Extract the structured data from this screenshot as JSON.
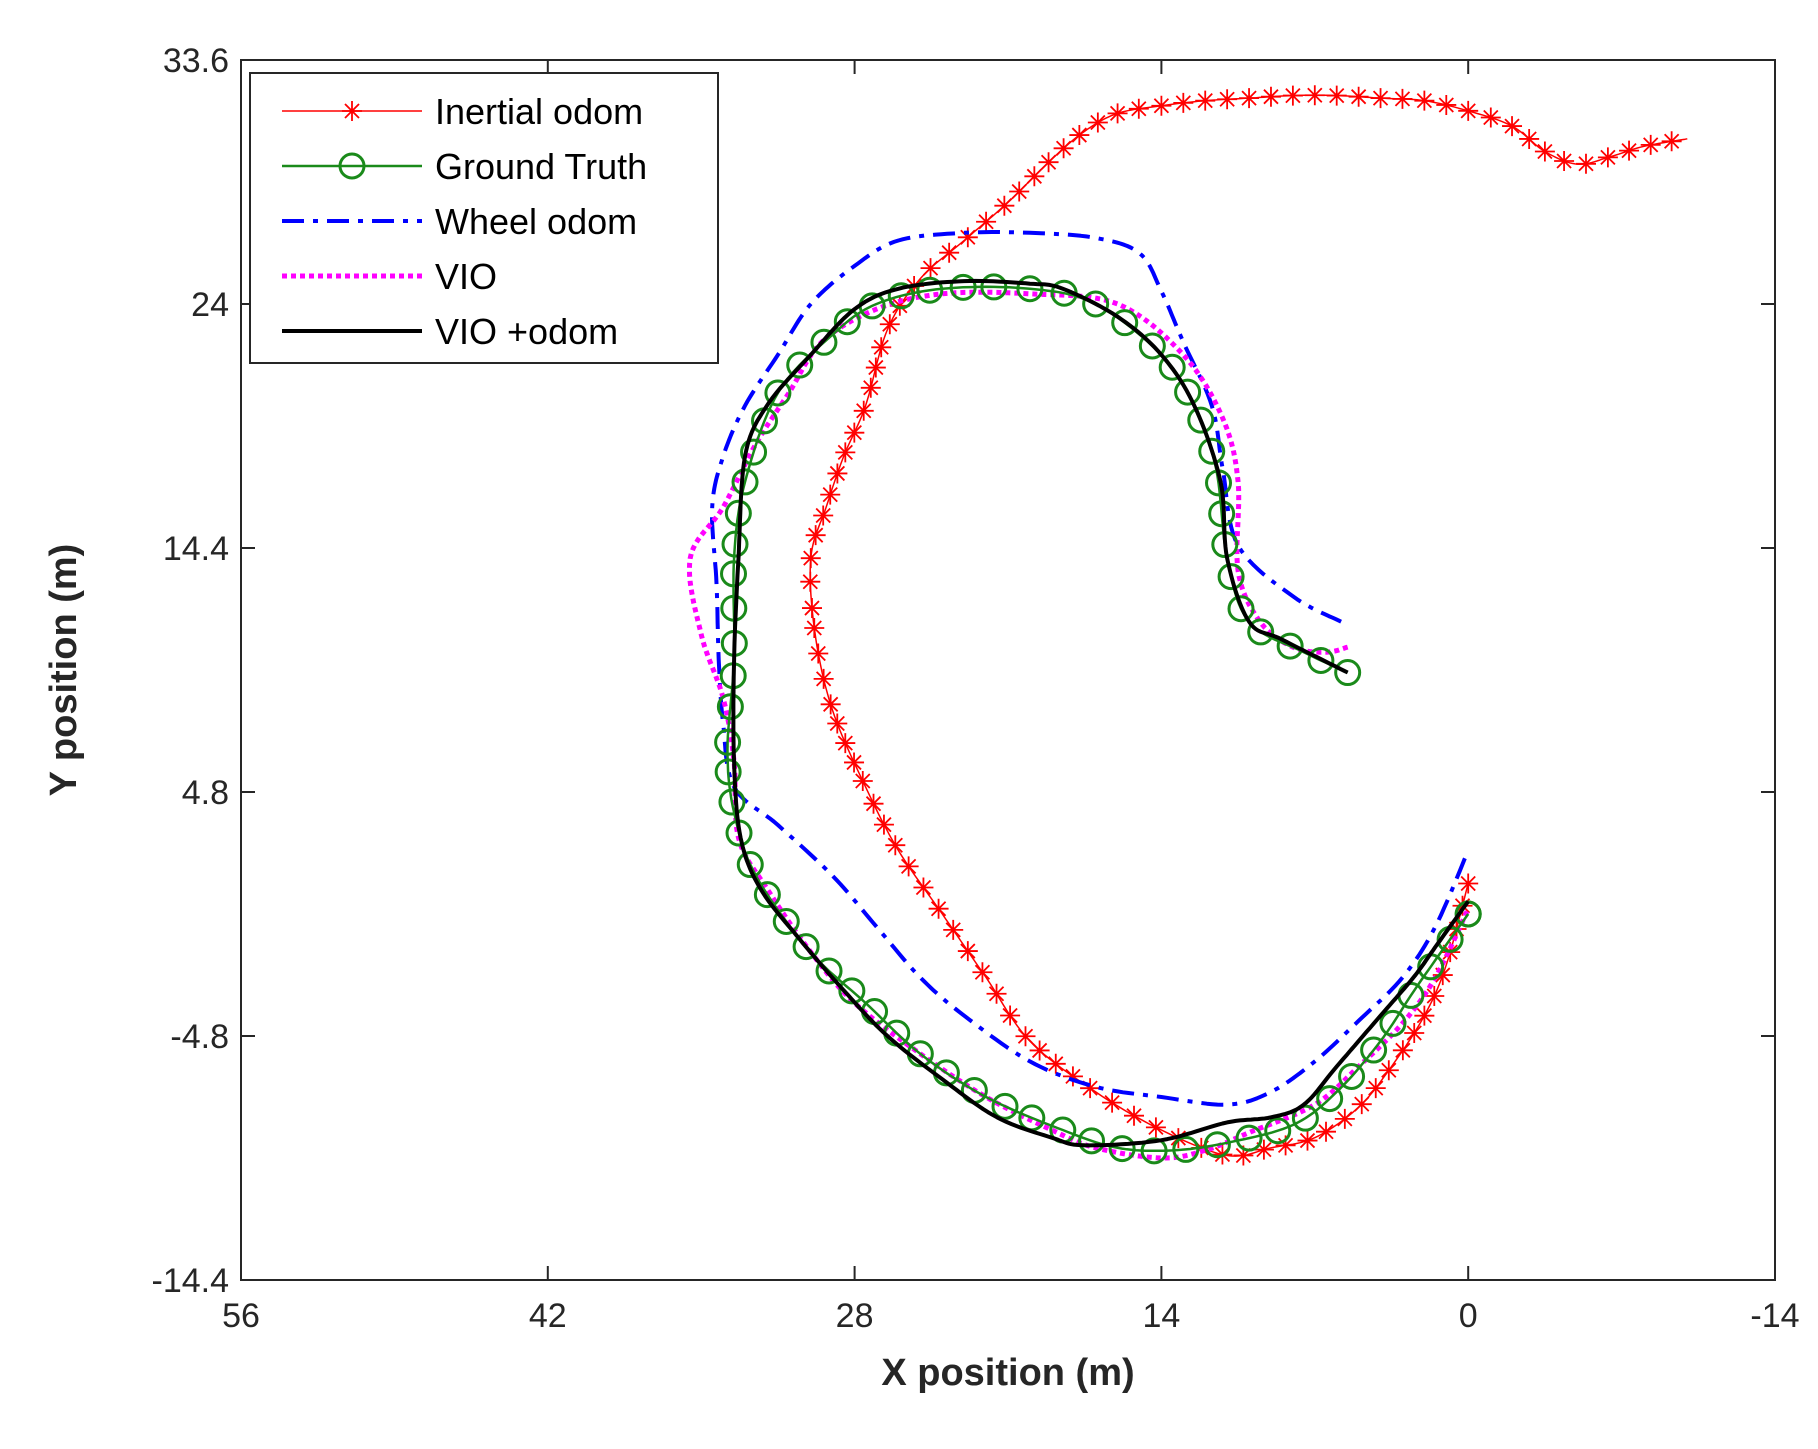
{
  "chart_data": {
    "type": "line",
    "title": "",
    "xlabel": "X position (m)",
    "ylabel": "Y position (m)",
    "xlim": [
      56,
      -14
    ],
    "ylim": [
      -14.4,
      33.6
    ],
    "x_reversed": true,
    "xticks": [
      56,
      42,
      28,
      14,
      0,
      -14
    ],
    "yticks": [
      -14.4,
      -4.8,
      4.8,
      14.4,
      24,
      33.6
    ],
    "xtick_labels": [
      "56",
      "42",
      "28",
      "14",
      "0",
      "-14"
    ],
    "ytick_labels": [
      "-14.4",
      "-4.8",
      "4.8",
      "14.4",
      "24",
      "33.6"
    ],
    "grid": false,
    "legend_position": "top-left",
    "series": [
      {
        "name": "Inertial odom",
        "color": "#ff0000",
        "style": "solid-star",
        "points": [
          [
            0,
            1.2
          ],
          [
            1,
            -2
          ],
          [
            2,
            -4
          ],
          [
            3.5,
            -6
          ],
          [
            5,
            -7.6
          ],
          [
            7,
            -8.8
          ],
          [
            9,
            -9.2
          ],
          [
            11,
            -9.5
          ],
          [
            14,
            -8.5
          ],
          [
            17,
            -7
          ],
          [
            20,
            -5
          ],
          [
            22,
            -2.5
          ],
          [
            24,
            0
          ],
          [
            26,
            2.5
          ],
          [
            27.5,
            5
          ],
          [
            29,
            8
          ],
          [
            29.8,
            11
          ],
          [
            30,
            14
          ],
          [
            29.3,
            16
          ],
          [
            28.5,
            18
          ],
          [
            27.5,
            20
          ],
          [
            26.5,
            23
          ],
          [
            25,
            25
          ],
          [
            23,
            26.5
          ],
          [
            21,
            28
          ],
          [
            19,
            29.7
          ],
          [
            17.5,
            30.8
          ],
          [
            16,
            31.5
          ],
          [
            14,
            31.8
          ],
          [
            12,
            32
          ],
          [
            10,
            32.1
          ],
          [
            8,
            32.2
          ],
          [
            6,
            32.2
          ],
          [
            4,
            32.1
          ],
          [
            2,
            32
          ],
          [
            0,
            31.6
          ],
          [
            -2,
            31
          ],
          [
            -3.5,
            30
          ],
          [
            -5,
            29.5
          ],
          [
            -6.5,
            29.8
          ],
          [
            -8,
            30.2
          ],
          [
            -10,
            30.5
          ]
        ]
      },
      {
        "name": "Ground Truth",
        "color": "#1a8a1a",
        "style": "solid-circle",
        "points": [
          [
            5.5,
            9.5
          ],
          [
            7.5,
            10.3
          ],
          [
            10,
            11.5
          ],
          [
            11,
            14
          ],
          [
            11.5,
            17.5
          ],
          [
            12.5,
            20
          ],
          [
            14,
            22
          ],
          [
            17,
            24
          ],
          [
            20,
            24.6
          ],
          [
            24,
            24.6
          ],
          [
            27,
            24
          ],
          [
            29,
            22.8
          ],
          [
            31.5,
            20.5
          ],
          [
            33,
            17
          ],
          [
            33.5,
            14
          ],
          [
            33.5,
            10
          ],
          [
            33.8,
            6.5
          ],
          [
            33.5,
            4
          ],
          [
            32.5,
            1.5
          ],
          [
            30,
            -1.5
          ],
          [
            27.5,
            -3.5
          ],
          [
            25,
            -5.5
          ],
          [
            22,
            -7.2
          ],
          [
            18.5,
            -8.5
          ],
          [
            16,
            -9.2
          ],
          [
            13.5,
            -9.3
          ],
          [
            11,
            -9
          ],
          [
            8,
            -8.3
          ],
          [
            6,
            -7
          ],
          [
            4,
            -5
          ],
          [
            2.3,
            -2.8
          ],
          [
            0,
            0
          ]
        ]
      },
      {
        "name": "Wheel odom",
        "color": "#0000ff",
        "style": "dashdot",
        "points": [
          [
            5.8,
            11.5
          ],
          [
            8,
            12.5
          ],
          [
            10.5,
            14.5
          ],
          [
            11.2,
            17.5
          ],
          [
            11.7,
            20
          ],
          [
            13,
            22.5
          ],
          [
            14,
            24.5
          ],
          [
            15,
            26
          ],
          [
            17,
            26.6
          ],
          [
            20,
            26.8
          ],
          [
            23,
            26.8
          ],
          [
            26,
            26.5
          ],
          [
            28,
            25.5
          ],
          [
            30,
            24
          ],
          [
            31.5,
            22
          ],
          [
            33,
            20
          ],
          [
            34,
            18
          ],
          [
            34.5,
            16
          ],
          [
            34.3,
            13
          ],
          [
            34.2,
            10
          ],
          [
            34,
            7.5
          ],
          [
            33.5,
            5
          ],
          [
            31.5,
            3.5
          ],
          [
            29,
            1.5
          ],
          [
            27,
            -0.5
          ],
          [
            25,
            -2.5
          ],
          [
            23,
            -4
          ],
          [
            20,
            -5.8
          ],
          [
            17,
            -6.8
          ],
          [
            14,
            -7.2
          ],
          [
            11,
            -7.5
          ],
          [
            9,
            -7
          ],
          [
            7,
            -5.8
          ],
          [
            5,
            -4.2
          ],
          [
            3,
            -2.5
          ],
          [
            1.5,
            -0.5
          ],
          [
            0,
            2.5
          ]
        ]
      },
      {
        "name": "VIO",
        "color": "#ff00ff",
        "style": "dotted",
        "points": [
          [
            5.5,
            10.5
          ],
          [
            6.5,
            10.3
          ],
          [
            8,
            10.5
          ],
          [
            9.5,
            11.5
          ],
          [
            10.5,
            13.5
          ],
          [
            10.5,
            17
          ],
          [
            11.2,
            19.5
          ],
          [
            13,
            22
          ],
          [
            16,
            24
          ],
          [
            20,
            24.4
          ],
          [
            24,
            24.4
          ],
          [
            27,
            23.8
          ],
          [
            29.5,
            22.5
          ],
          [
            31,
            20.5
          ],
          [
            32.5,
            18.5
          ],
          [
            34,
            16
          ],
          [
            35.5,
            14
          ],
          [
            35,
            11
          ],
          [
            34,
            8.5
          ],
          [
            33.5,
            6
          ],
          [
            33.3,
            3
          ],
          [
            32,
            1
          ],
          [
            30,
            -1.5
          ],
          [
            28,
            -3.5
          ],
          [
            25,
            -5.5
          ],
          [
            22,
            -7.2
          ],
          [
            19,
            -8.5
          ],
          [
            17,
            -9.2
          ],
          [
            14,
            -9.6
          ],
          [
            12,
            -9.3
          ],
          [
            10,
            -8.6
          ],
          [
            7,
            -7.5
          ],
          [
            5,
            -6
          ],
          [
            3,
            -4.3
          ],
          [
            1.5,
            -2.5
          ],
          [
            0,
            0.2
          ]
        ]
      },
      {
        "name": "VIO +odom",
        "color": "#000000",
        "style": "solid",
        "points": [
          [
            5.5,
            9.5
          ],
          [
            8.5,
            10.8
          ],
          [
            10,
            11.5
          ],
          [
            11,
            14
          ],
          [
            11.3,
            17
          ],
          [
            12.5,
            20
          ],
          [
            14,
            22
          ],
          [
            16,
            23.5
          ],
          [
            18.5,
            24.6
          ],
          [
            20,
            24.8
          ],
          [
            23,
            24.9
          ],
          [
            26,
            24.6
          ],
          [
            28,
            23.8
          ],
          [
            30,
            22
          ],
          [
            32,
            20
          ],
          [
            33,
            18
          ],
          [
            33.3,
            14
          ],
          [
            33.5,
            10
          ],
          [
            33.5,
            6
          ],
          [
            33.2,
            3
          ],
          [
            32.3,
            1
          ],
          [
            30.5,
            -1
          ],
          [
            28.5,
            -3
          ],
          [
            26.5,
            -4.8
          ],
          [
            24,
            -6.5
          ],
          [
            21.5,
            -8
          ],
          [
            19,
            -8.8
          ],
          [
            17.5,
            -9.1
          ],
          [
            14,
            -8.9
          ],
          [
            11,
            -8.2
          ],
          [
            9,
            -8
          ],
          [
            7.5,
            -7.5
          ],
          [
            6,
            -6
          ],
          [
            4,
            -4
          ],
          [
            2.5,
            -2.5
          ],
          [
            1.5,
            -1.3
          ],
          [
            0,
            0.5
          ]
        ]
      }
    ]
  }
}
